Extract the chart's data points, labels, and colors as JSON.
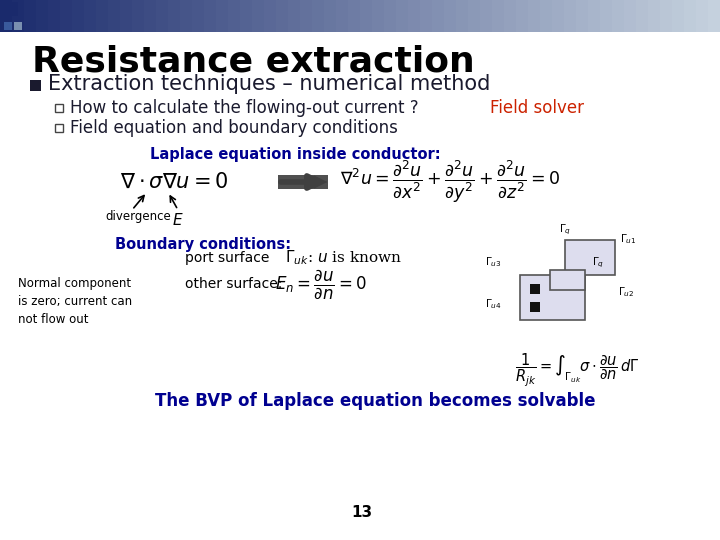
{
  "title": "Resistance extraction",
  "bullet_main": "Extraction techniques – numerical method",
  "bullet1": "How to calculate the flowing-out current ?  ",
  "bullet1_red": "Field solver",
  "bullet2": "Field equation and boundary conditions",
  "section1_title": "Laplace equation inside conductor:",
  "label_divergence": "divergence",
  "section2_title": "Boundary conditions:",
  "bc1_label": "port surface",
  "bc2_label": "other surface:",
  "note_left": "Normal component\nis zero; current can\nnot flow out",
  "conclusion": "The BVP of Laplace equation becomes solvable",
  "page_number": "13",
  "bg_color": "#ffffff",
  "title_color": "#000000",
  "main_bullet_color": "#1a1a2e",
  "sub_bullet_color": "#1a1a2e",
  "red_text_color": "#cc2200",
  "section_title_color": "#000090",
  "conclusion_color": "#000090",
  "note_color": "#000000",
  "header_dark": "#1a2a6c",
  "header_light": "#aabbcc"
}
